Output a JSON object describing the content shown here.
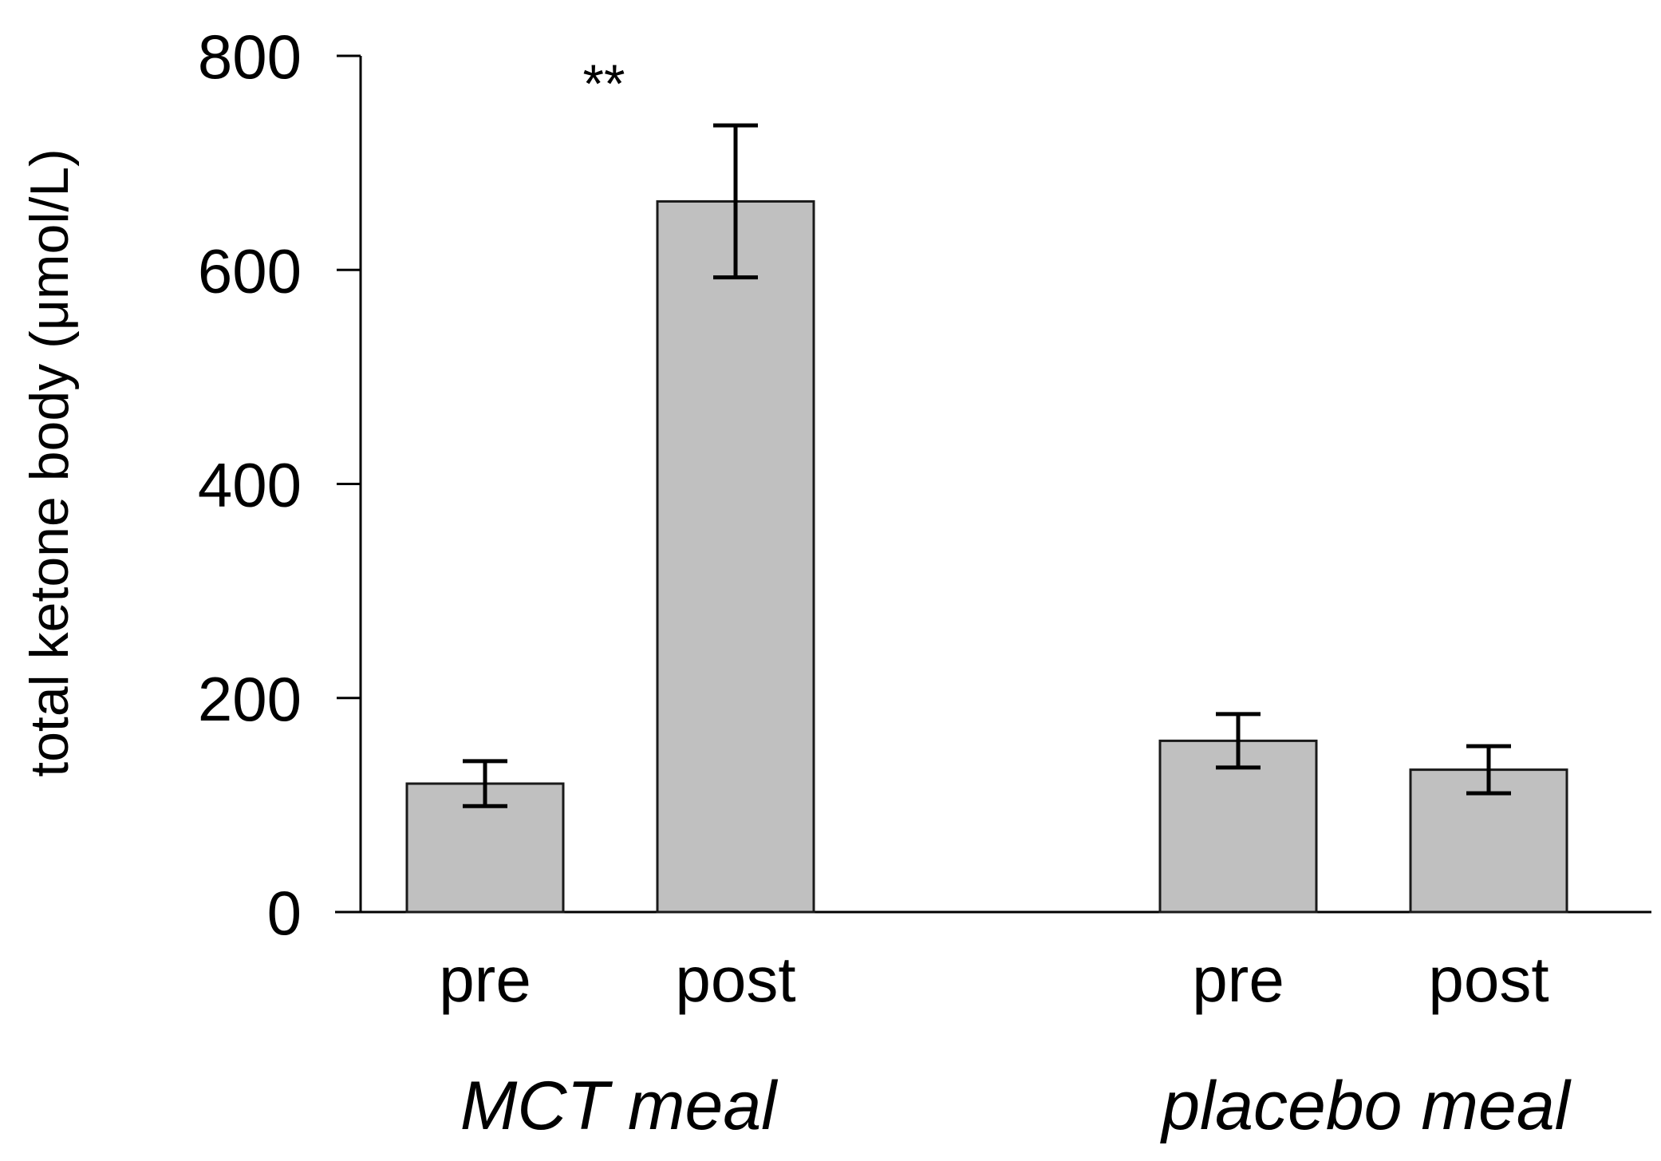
{
  "chart_data": {
    "type": "bar",
    "title": "",
    "ylabel": "total ketone body (μmol/L)",
    "xlabel": "",
    "ylim": [
      0,
      800
    ],
    "yticks": [
      0,
      200,
      400,
      600,
      800
    ],
    "grid": false,
    "bar_color": "#c0c0c0",
    "groups": [
      {
        "name": "MCT meal",
        "significance": "**",
        "bars": [
          {
            "category": "pre",
            "value": 120,
            "error": 21
          },
          {
            "category": "post",
            "value": 664,
            "error": 71
          }
        ]
      },
      {
        "name": "placebo meal",
        "significance": "",
        "bars": [
          {
            "category": "pre",
            "value": 160,
            "error": 25
          },
          {
            "category": "post",
            "value": 133,
            "error": 22
          }
        ]
      }
    ]
  }
}
